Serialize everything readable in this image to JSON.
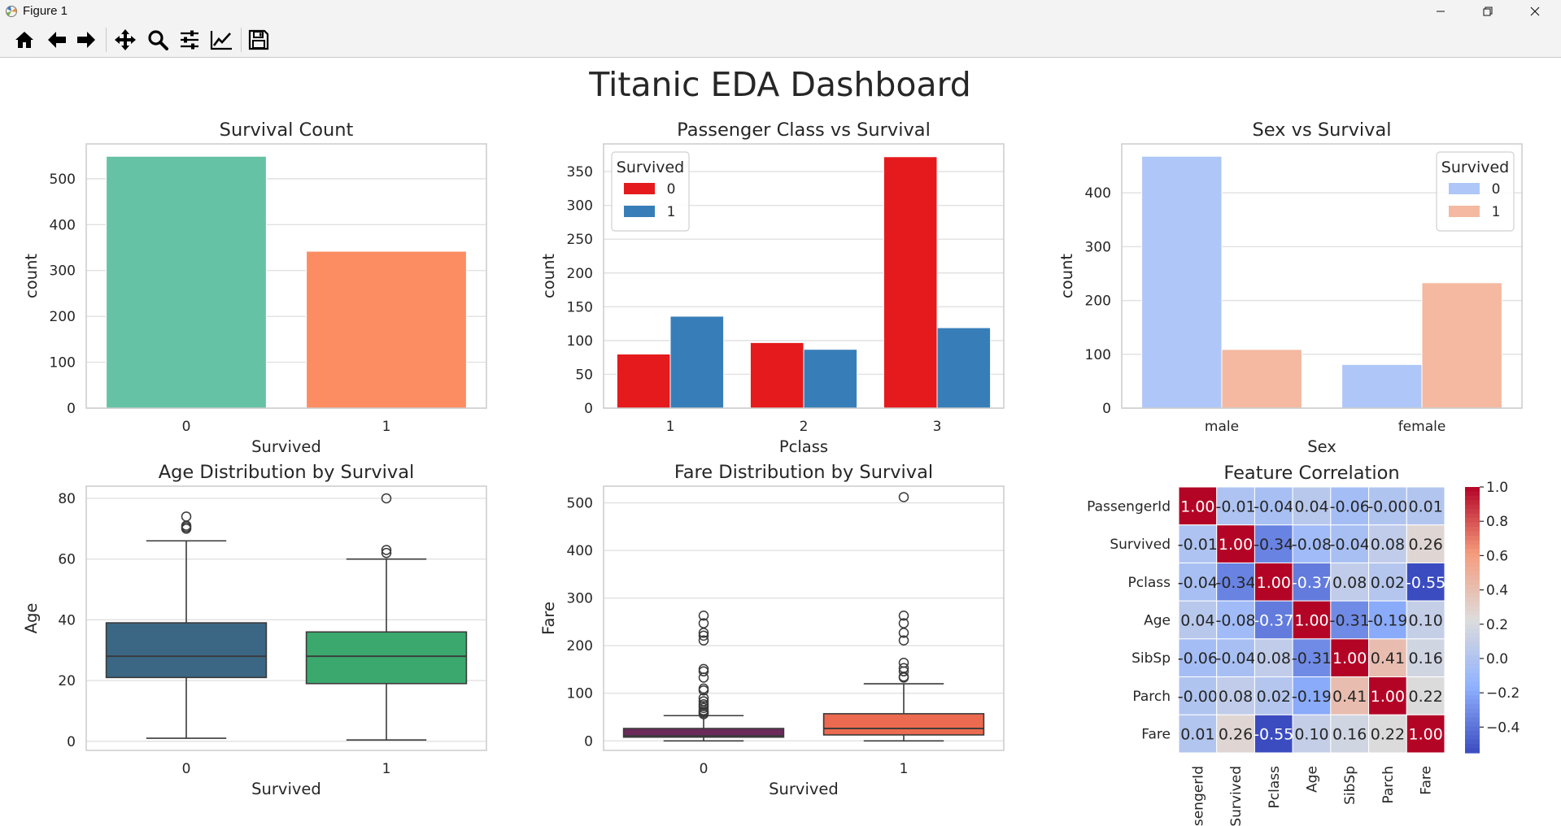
{
  "window": {
    "title": "Figure 1",
    "controls": [
      "minimize-icon",
      "restore-icon",
      "close-icon"
    ]
  },
  "toolbar": {
    "buttons": [
      {
        "name": "home-button",
        "icon": "home-icon"
      },
      {
        "name": "back-button",
        "icon": "arrow-left-icon"
      },
      {
        "name": "forward-button",
        "icon": "arrow-right-icon"
      },
      {
        "name": "pan-button",
        "icon": "move-icon"
      },
      {
        "name": "zoom-button",
        "icon": "magnifier-icon"
      },
      {
        "name": "subplots-button",
        "icon": "sliders-icon"
      },
      {
        "name": "customize-button",
        "icon": "line-chart-icon"
      },
      {
        "name": "save-button",
        "icon": "floppy-disk-icon"
      }
    ]
  },
  "figure": {
    "suptitle": "Titanic EDA Dashboard"
  },
  "chart_data": [
    {
      "type": "bar",
      "title": "Survival Count",
      "xlabel": "Survived",
      "ylabel": "count",
      "categories": [
        "0",
        "1"
      ],
      "values": [
        549,
        342
      ],
      "colors": [
        "#66c2a5",
        "#fc8d62"
      ],
      "ylim": [
        0,
        576
      ],
      "yticks": [
        0,
        100,
        200,
        300,
        400,
        500
      ],
      "grid": true
    },
    {
      "type": "bar",
      "title": "Passenger Class vs Survival",
      "xlabel": "Pclass",
      "ylabel": "count",
      "categories": [
        "1",
        "2",
        "3"
      ],
      "legend": {
        "title": "Survived",
        "loc": "upper left"
      },
      "series": [
        {
          "name": "0",
          "values": [
            80,
            97,
            372
          ],
          "color": "#e41a1c"
        },
        {
          "name": "1",
          "values": [
            136,
            87,
            119
          ],
          "color": "#377eb8"
        }
      ],
      "ylim": [
        0,
        391
      ],
      "yticks": [
        0,
        50,
        100,
        150,
        200,
        250,
        300,
        350
      ],
      "grid": true
    },
    {
      "type": "bar",
      "title": "Sex vs Survival",
      "xlabel": "Sex",
      "ylabel": "count",
      "categories": [
        "male",
        "female"
      ],
      "legend": {
        "title": "Survived",
        "loc": "upper right"
      },
      "series": [
        {
          "name": "0",
          "values": [
            468,
            81
          ],
          "color": "#aec7f8"
        },
        {
          "name": "1",
          "values": [
            109,
            233
          ],
          "color": "#f4b9a0"
        }
      ],
      "ylim": [
        0,
        491
      ],
      "yticks": [
        0,
        100,
        200,
        300,
        400
      ],
      "grid": true
    },
    {
      "type": "box",
      "title": "Age Distribution by Survival",
      "xlabel": "Survived",
      "ylabel": "Age",
      "categories": [
        "0",
        "1"
      ],
      "colors": [
        "#3b6784",
        "#3ba96e"
      ],
      "boxes": [
        {
          "q1": 21,
          "median": 28,
          "q3": 39,
          "whislo": 1,
          "whishi": 66,
          "fliers": [
            70,
            70.5,
            71,
            74
          ]
        },
        {
          "q1": 19,
          "median": 28,
          "q3": 36,
          "whislo": 0.42,
          "whishi": 60,
          "fliers": [
            62,
            63,
            80
          ]
        }
      ],
      "ylim": [
        -3,
        84
      ],
      "yticks": [
        0,
        20,
        40,
        60,
        80
      ],
      "grid": true
    },
    {
      "type": "box",
      "title": "Fare Distribution by Survival",
      "xlabel": "Survived",
      "ylabel": "Fare",
      "categories": [
        "0",
        "1"
      ],
      "colors": [
        "#6b2a5a",
        "#ec6a4f"
      ],
      "boxes": [
        {
          "q1": 7.85,
          "median": 10.5,
          "q3": 26,
          "whislo": 0,
          "whishi": 53,
          "fliers": [
            56,
            59,
            61,
            64,
            69,
            73,
            77,
            83,
            90,
            106,
            110,
            133,
            146,
            151,
            211,
            221,
            227,
            247,
            263
          ]
        },
        {
          "q1": 12.5,
          "median": 26,
          "q3": 57,
          "whislo": 0,
          "whishi": 120,
          "fliers": [
            133,
            135,
            146,
            153,
            164,
            211,
            227,
            247,
            263,
            512
          ]
        }
      ],
      "ylim": [
        -20,
        535
      ],
      "yticks": [
        0,
        100,
        200,
        300,
        400,
        500
      ],
      "grid": true
    },
    {
      "type": "heatmap",
      "title": "Feature Correlation",
      "labels": [
        "PassengerId",
        "Survived",
        "Pclass",
        "Age",
        "SibSp",
        "Parch",
        "Fare"
      ],
      "matrix": [
        [
          1.0,
          -0.01,
          -0.04,
          0.04,
          -0.06,
          -0.0,
          0.01
        ],
        [
          -0.01,
          1.0,
          -0.34,
          -0.08,
          -0.04,
          0.08,
          0.26
        ],
        [
          -0.04,
          -0.34,
          1.0,
          -0.37,
          0.08,
          0.02,
          -0.55
        ],
        [
          0.04,
          -0.08,
          -0.37,
          1.0,
          -0.31,
          -0.19,
          0.1
        ],
        [
          -0.06,
          -0.04,
          0.08,
          -0.31,
          1.0,
          0.41,
          0.16
        ],
        [
          -0.0,
          0.08,
          0.02,
          -0.19,
          0.41,
          1.0,
          0.22
        ],
        [
          0.01,
          0.26,
          -0.55,
          0.1,
          0.16,
          0.22,
          1.0
        ]
      ],
      "cell_labels": [
        [
          "1.00",
          "-0.01",
          "-0.04",
          "0.04",
          "-0.06",
          "-0.00",
          "0.01"
        ],
        [
          "-0.01",
          "1.00",
          "-0.34",
          "-0.08",
          "-0.04",
          "0.08",
          "0.26"
        ],
        [
          "-0.04",
          "-0.34",
          "1.00",
          "-0.37",
          "0.08",
          "0.02",
          "-0.55"
        ],
        [
          "0.04",
          "-0.08",
          "-0.37",
          "1.00",
          "-0.31",
          "-0.19",
          "0.10"
        ],
        [
          "-0.06",
          "-0.04",
          "0.08",
          "-0.31",
          "1.00",
          "0.41",
          "0.16"
        ],
        [
          "-0.00",
          "0.08",
          "0.02",
          "-0.19",
          "0.41",
          "1.00",
          "0.22"
        ],
        [
          "0.01",
          "0.26",
          "-0.55",
          "0.10",
          "0.16",
          "0.22",
          "1.00"
        ]
      ],
      "colormap": "coolwarm",
      "vmin": -0.55,
      "vmax": 1.0,
      "colorbar_ticks": [
        1.0,
        0.8,
        0.6,
        0.4,
        0.2,
        0.0,
        -0.2,
        -0.4
      ],
      "colorbar_tick_labels": [
        "1.0",
        "0.8",
        "0.6",
        "0.4",
        "0.2",
        "0.0",
        "−0.2",
        "−0.4"
      ]
    }
  ]
}
